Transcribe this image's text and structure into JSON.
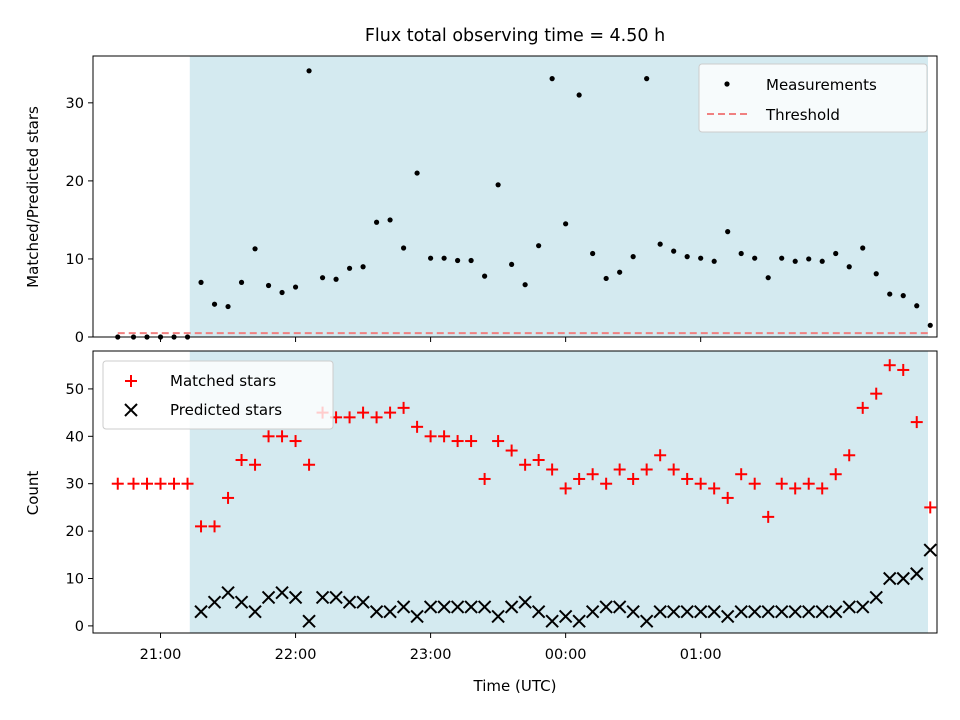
{
  "title": "Flux total observing time = 4.50 h",
  "chart_data": [
    {
      "type": "scatter",
      "ylabel": "Matched/Predicted stars",
      "xlabel": "",
      "xlim": [
        "20:30",
        "02:45"
      ],
      "ylim": [
        0,
        36
      ],
      "yticks": [
        0,
        10,
        20,
        30
      ],
      "ytick_labels": [
        "0",
        "10",
        "20",
        "30"
      ],
      "grid": false,
      "legend_position": "upper right",
      "shaded_span": {
        "start": "21:13",
        "end": "02:41",
        "color": "#d4eaf0"
      },
      "colors": {
        "measurements": "#000000",
        "threshold": "#f08080"
      },
      "series": [
        {
          "name": "Measurements",
          "marker": "dot",
          "x": [
            "20:41",
            "20:48",
            "20:54",
            "21:00",
            "21:06",
            "21:12",
            "21:18",
            "21:24",
            "21:30",
            "21:36",
            "21:42",
            "21:48",
            "21:54",
            "22:00",
            "22:06",
            "22:12",
            "22:18",
            "22:24",
            "22:30",
            "22:36",
            "22:42",
            "22:48",
            "22:54",
            "23:00",
            "23:06",
            "23:12",
            "23:18",
            "23:24",
            "23:30",
            "23:36",
            "23:42",
            "23:48",
            "23:54",
            "00:00",
            "00:06",
            "00:12",
            "00:18",
            "00:24",
            "00:30",
            "00:36",
            "00:42",
            "00:48",
            "00:54",
            "01:00",
            "01:06",
            "01:12",
            "01:18",
            "01:24",
            "01:30",
            "01:36",
            "01:42",
            "01:48",
            "01:54",
            "02:00",
            "02:06",
            "02:12",
            "02:18",
            "02:24",
            "02:30",
            "02:36",
            "02:42"
          ],
          "y": [
            0,
            0,
            0,
            0,
            0,
            0,
            7,
            4.2,
            3.9,
            7,
            11.3,
            6.6,
            5.7,
            6.4,
            34.1,
            7.6,
            7.4,
            8.8,
            9,
            14.7,
            15,
            11.4,
            21,
            10.1,
            10.1,
            9.8,
            9.8,
            7.8,
            19.5,
            9.3,
            6.7,
            11.7,
            33.1,
            14.5,
            31,
            10.7,
            7.5,
            8.3,
            10.3,
            33.1,
            11.9,
            11,
            10.3,
            10.1,
            9.7,
            13.5,
            10.7,
            10.1,
            7.6,
            10.1,
            9.7,
            10,
            9.7,
            10.7,
            9,
            11.4,
            8.1,
            5.5,
            5.3,
            4,
            1.5
          ]
        },
        {
          "name": "Threshold",
          "style": "dashed",
          "x": [
            "20:41",
            "02:41"
          ],
          "y": [
            0.5,
            0.5
          ]
        }
      ]
    },
    {
      "type": "scatter",
      "ylabel": "Count",
      "xlabel": "Time (UTC)",
      "xlim": [
        "20:30",
        "02:45"
      ],
      "ylim": [
        -1.5,
        58
      ],
      "yticks": [
        0,
        10,
        20,
        30,
        40,
        50
      ],
      "ytick_labels": [
        "0",
        "10",
        "20",
        "30",
        "40",
        "50"
      ],
      "xticks": [
        "21:00",
        "22:00",
        "23:00",
        "00:00",
        "01:00"
      ],
      "xtick_labels": [
        "21:00",
        "22:00",
        "23:00",
        "00:00",
        "01:00"
      ],
      "grid": false,
      "legend_position": "upper left",
      "shaded_span": {
        "start": "21:13",
        "end": "02:41",
        "color": "#d4eaf0"
      },
      "colors": {
        "matched": "#ff0000",
        "predicted": "#000000"
      },
      "series": [
        {
          "name": "Matched stars",
          "marker": "plus",
          "x": [
            "20:41",
            "20:48",
            "20:54",
            "21:00",
            "21:06",
            "21:12",
            "21:18",
            "21:24",
            "21:30",
            "21:36",
            "21:42",
            "21:48",
            "21:54",
            "22:00",
            "22:06",
            "22:12",
            "22:18",
            "22:24",
            "22:30",
            "22:36",
            "22:42",
            "22:48",
            "22:54",
            "23:00",
            "23:06",
            "23:12",
            "23:18",
            "23:24",
            "23:30",
            "23:36",
            "23:42",
            "23:48",
            "23:54",
            "00:00",
            "00:06",
            "00:12",
            "00:18",
            "00:24",
            "00:30",
            "00:36",
            "00:42",
            "00:48",
            "00:54",
            "01:00",
            "01:06",
            "01:12",
            "01:18",
            "01:24",
            "01:30",
            "01:36",
            "01:42",
            "01:48",
            "01:54",
            "02:00",
            "02:06",
            "02:12",
            "02:18",
            "02:24",
            "02:30",
            "02:36",
            "02:42"
          ],
          "y": [
            30,
            30,
            30,
            30,
            30,
            30,
            21,
            21,
            27,
            35,
            34,
            40,
            40,
            39,
            34,
            45,
            44,
            44,
            45,
            44,
            45,
            46,
            42,
            40,
            40,
            39,
            39,
            31,
            39,
            37,
            34,
            35,
            33,
            29,
            31,
            32,
            30,
            33,
            31,
            33,
            36,
            33,
            31,
            30,
            29,
            27,
            32,
            30,
            23,
            30,
            29,
            30,
            29,
            32,
            36,
            46,
            49,
            55,
            54,
            43,
            25
          ]
        },
        {
          "name": "Predicted stars",
          "marker": "x",
          "x": [
            "21:18",
            "21:24",
            "21:30",
            "21:36",
            "21:42",
            "21:48",
            "21:54",
            "22:00",
            "22:06",
            "22:12",
            "22:18",
            "22:24",
            "22:30",
            "22:36",
            "22:42",
            "22:48",
            "22:54",
            "23:00",
            "23:06",
            "23:12",
            "23:18",
            "23:24",
            "23:30",
            "23:36",
            "23:42",
            "23:48",
            "23:54",
            "00:00",
            "00:06",
            "00:12",
            "00:18",
            "00:24",
            "00:30",
            "00:36",
            "00:42",
            "00:48",
            "00:54",
            "01:00",
            "01:06",
            "01:12",
            "01:18",
            "01:24",
            "01:30",
            "01:36",
            "01:42",
            "01:48",
            "01:54",
            "02:00",
            "02:06",
            "02:12",
            "02:18",
            "02:24",
            "02:30",
            "02:36",
            "02:42"
          ],
          "y": [
            3,
            5,
            7,
            5,
            3,
            6,
            7,
            6,
            1,
            6,
            6,
            5,
            5,
            3,
            3,
            4,
            2,
            4,
            4,
            4,
            4,
            4,
            2,
            4,
            5,
            3,
            1,
            2,
            1,
            3,
            4,
            4,
            3,
            1,
            3,
            3,
            3,
            3,
            3,
            2,
            3,
            3,
            3,
            3,
            3,
            3,
            3,
            3,
            4,
            4,
            6,
            10,
            10,
            11,
            16
          ]
        }
      ]
    }
  ]
}
